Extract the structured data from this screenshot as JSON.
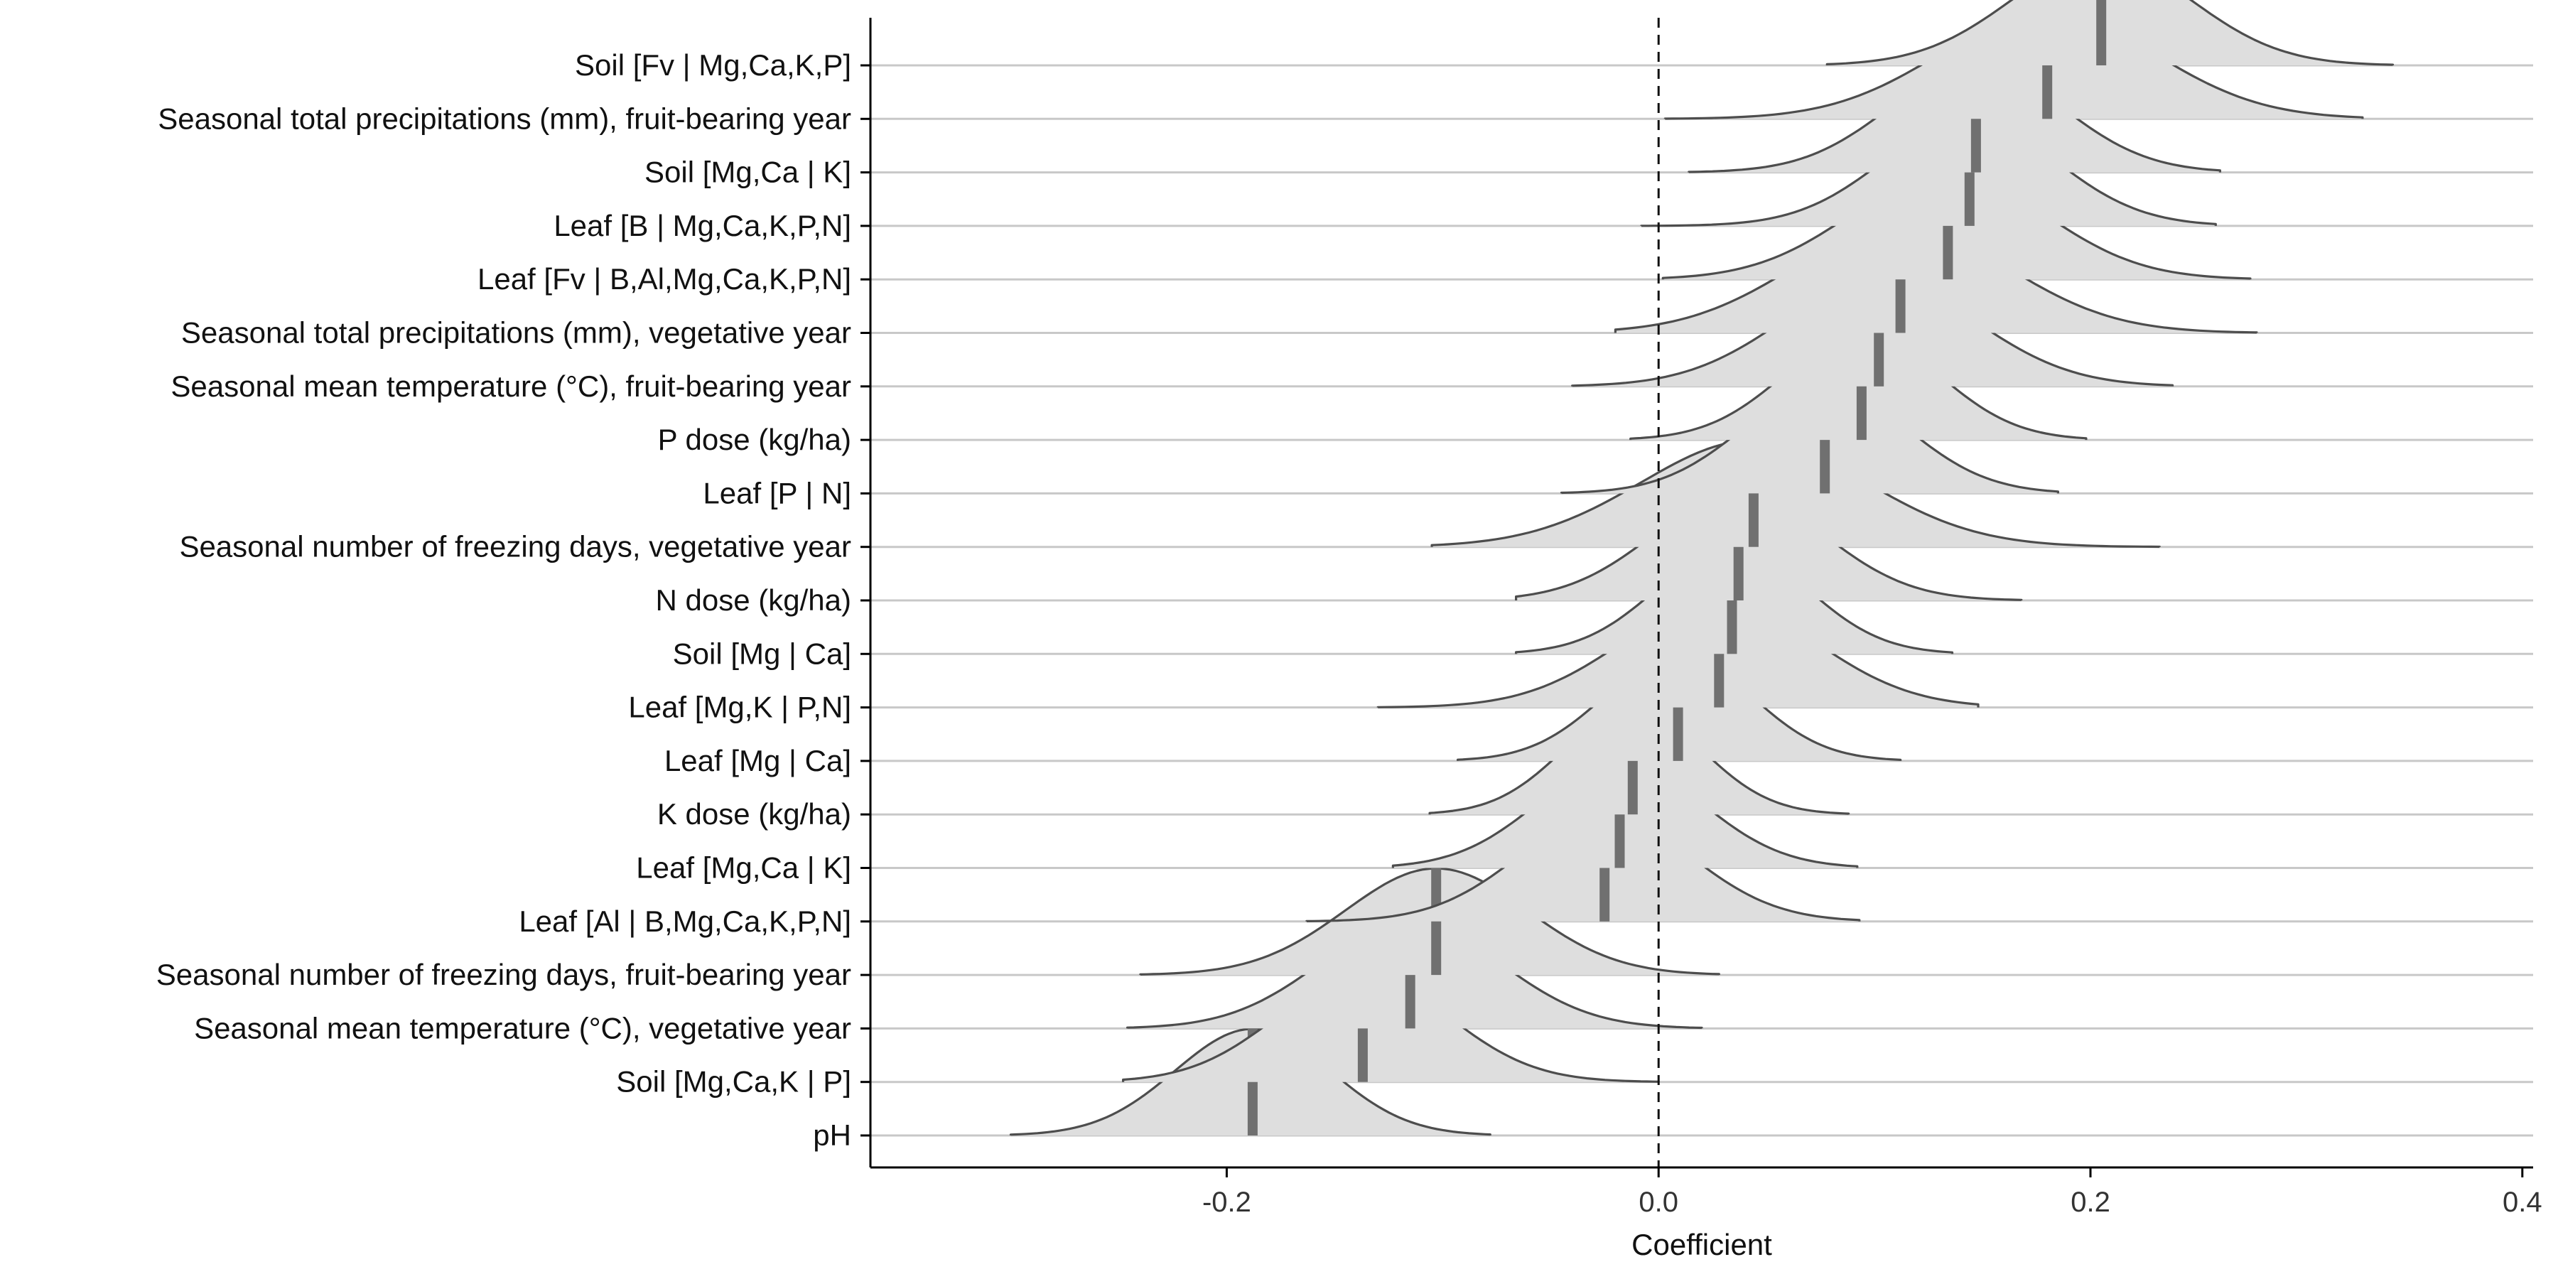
{
  "chart_data": {
    "type": "ridgeline",
    "title": "",
    "xlabel": "Coefficient",
    "ylabel": "",
    "xlim": [
      -0.365,
      0.405
    ],
    "xticks": [
      -0.2,
      0.0,
      0.2,
      0.4
    ],
    "xtick_labels": [
      "-0.2",
      "0.0",
      "0.2",
      "0.4"
    ],
    "reference_line": {
      "x": 0.0,
      "style": "dashed"
    },
    "grid": "horizontal row baselines only",
    "legend": "none",
    "colors": {
      "fill": "#dedede",
      "outline": "#4d4d4d",
      "median": "#707070",
      "row_line": "#c8c8c8"
    },
    "series": [
      {
        "label": "Soil [Fv | Mg,Ca,K,P]",
        "median": 0.205,
        "min": 0.078,
        "max": 0.34,
        "sd": 0.042
      },
      {
        "label": "Seasonal total precipitations (mm), fruit-bearing year",
        "median": 0.18,
        "min": 0.003,
        "max": 0.326,
        "sd": 0.05
      },
      {
        "label": "Soil [Mg,Ca | K]",
        "median": 0.147,
        "min": 0.014,
        "max": 0.26,
        "sd": 0.04
      },
      {
        "label": "Leaf [B | Mg,Ca,K,P,N]",
        "median": 0.144,
        "min": -0.008,
        "max": 0.258,
        "sd": 0.04
      },
      {
        "label": "Leaf [Fv | B,Al,Mg,Ca,K,P,N]",
        "median": 0.134,
        "min": 0.002,
        "max": 0.274,
        "sd": 0.045
      },
      {
        "label": "Seasonal total precipitations (mm), vegetative year",
        "median": 0.112,
        "min": -0.02,
        "max": 0.277,
        "sd": 0.05
      },
      {
        "label": "Seasonal mean temperature (°C), fruit-bearing year",
        "median": 0.102,
        "min": -0.04,
        "max": 0.238,
        "sd": 0.045
      },
      {
        "label": "P dose (kg/ha)",
        "median": 0.094,
        "min": -0.013,
        "max": 0.198,
        "sd": 0.036
      },
      {
        "label": "Leaf [P | N]",
        "median": 0.077,
        "min": -0.045,
        "max": 0.185,
        "sd": 0.038
      },
      {
        "label": "Seasonal number of freezing days, vegetative year",
        "median": 0.044,
        "min": -0.105,
        "max": 0.232,
        "sd": 0.052
      },
      {
        "label": "N dose (kg/ha)",
        "median": 0.037,
        "min": -0.066,
        "max": 0.168,
        "sd": 0.04
      },
      {
        "label": "Soil [Mg | Ca]",
        "median": 0.034,
        "min": -0.066,
        "max": 0.136,
        "sd": 0.035
      },
      {
        "label": "Leaf [Mg,K | P,N]",
        "median": 0.028,
        "min": -0.13,
        "max": 0.148,
        "sd": 0.045
      },
      {
        "label": "Leaf [Mg | Ca]",
        "median": 0.009,
        "min": -0.093,
        "max": 0.112,
        "sd": 0.034
      },
      {
        "label": "K dose (kg/ha)",
        "median": -0.012,
        "min": -0.106,
        "max": 0.088,
        "sd": 0.032
      },
      {
        "label": "Leaf [Mg,Ca | K]",
        "median": -0.018,
        "min": -0.123,
        "max": 0.092,
        "sd": 0.038
      },
      {
        "label": "Leaf [Al | B,Mg,Ca,K,P,N]",
        "median": -0.025,
        "min": -0.163,
        "max": 0.093,
        "sd": 0.04
      },
      {
        "label": "Seasonal number of freezing days, fruit-bearing year",
        "median": -0.103,
        "min": -0.24,
        "max": 0.028,
        "sd": 0.042
      },
      {
        "label": "Seasonal mean temperature (°C), vegetative year",
        "median": -0.115,
        "min": -0.246,
        "max": 0.02,
        "sd": 0.042
      },
      {
        "label": "Soil [Mg,Ca,K | P]",
        "median": -0.137,
        "min": -0.248,
        "max": 0.0,
        "sd": 0.04
      },
      {
        "label": "pH",
        "median": -0.188,
        "min": -0.3,
        "max": -0.078,
        "sd": 0.036
      }
    ]
  }
}
